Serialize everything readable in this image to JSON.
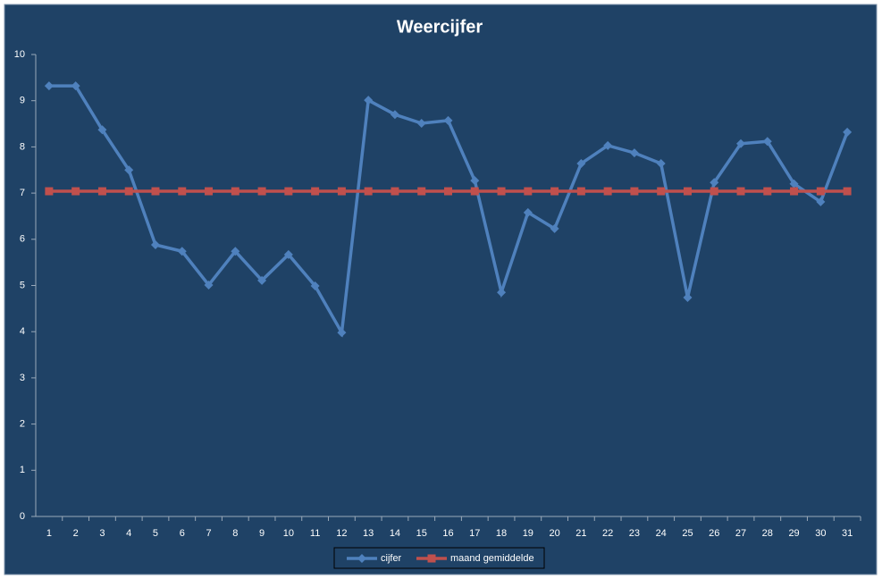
{
  "chart_data": {
    "type": "line",
    "title": "Weercijfer",
    "categories": [
      "1",
      "2",
      "3",
      "4",
      "5",
      "6",
      "7",
      "8",
      "9",
      "10",
      "11",
      "12",
      "13",
      "14",
      "15",
      "16",
      "17",
      "18",
      "19",
      "20",
      "21",
      "22",
      "23",
      "24",
      "25",
      "26",
      "27",
      "28",
      "29",
      "30",
      "31"
    ],
    "series": [
      {
        "name": "cijfer",
        "color": "#4f81bd",
        "marker": "diamond",
        "values": [
          9.32,
          9.32,
          8.37,
          7.5,
          5.88,
          5.74,
          5.01,
          5.74,
          5.11,
          5.67,
          4.99,
          3.98,
          9.01,
          8.7,
          8.51,
          8.57,
          7.27,
          4.85,
          6.58,
          6.23,
          7.64,
          8.03,
          7.87,
          7.64,
          4.74,
          7.23,
          8.07,
          8.12,
          7.2,
          6.81,
          8.32
        ]
      },
      {
        "name": "maand gemiddelde",
        "color": "#c0504d",
        "marker": "square",
        "values": [
          7.04,
          7.04,
          7.04,
          7.04,
          7.04,
          7.04,
          7.04,
          7.04,
          7.04,
          7.04,
          7.04,
          7.04,
          7.04,
          7.04,
          7.04,
          7.04,
          7.04,
          7.04,
          7.04,
          7.04,
          7.04,
          7.04,
          7.04,
          7.04,
          7.04,
          7.04,
          7.04,
          7.04,
          7.04,
          7.04,
          7.04
        ]
      }
    ],
    "ylim": [
      0,
      10
    ],
    "yticks": [
      0,
      1,
      2,
      3,
      4,
      5,
      6,
      7,
      8,
      9,
      10
    ],
    "grid": false,
    "legend": "bottom"
  }
}
